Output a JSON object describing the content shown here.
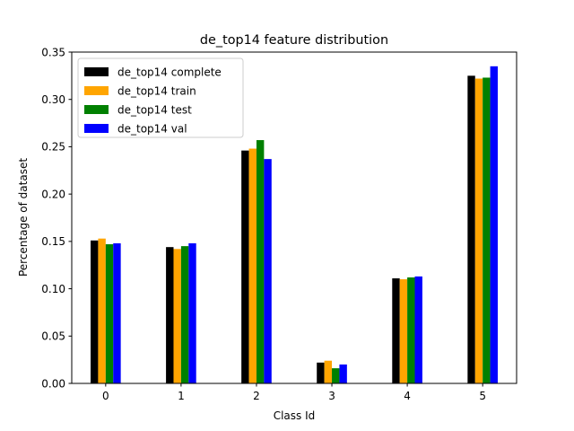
{
  "chart_data": {
    "type": "bar",
    "title": "de_top14 feature distribution",
    "xlabel": "Class Id",
    "ylabel": "Percentage of dataset",
    "categories": [
      "0",
      "1",
      "2",
      "3",
      "4",
      "5"
    ],
    "ylim": [
      0,
      0.35
    ],
    "yticks": [
      "0.00",
      "0.05",
      "0.10",
      "0.15",
      "0.20",
      "0.25",
      "0.30",
      "0.35"
    ],
    "grid": false,
    "legend_position": "top-left",
    "series": [
      {
        "name": "de_top14 complete",
        "color": "#000000",
        "values": [
          0.151,
          0.144,
          0.246,
          0.022,
          0.111,
          0.325
        ]
      },
      {
        "name": "de_top14 train",
        "color": "#ffa500",
        "values": [
          0.153,
          0.142,
          0.248,
          0.024,
          0.11,
          0.322
        ]
      },
      {
        "name": "de_top14 test",
        "color": "#008000",
        "values": [
          0.147,
          0.145,
          0.257,
          0.016,
          0.112,
          0.323
        ]
      },
      {
        "name": "de_top14 val",
        "color": "#0000ff",
        "values": [
          0.148,
          0.148,
          0.237,
          0.02,
          0.113,
          0.335
        ]
      }
    ]
  }
}
